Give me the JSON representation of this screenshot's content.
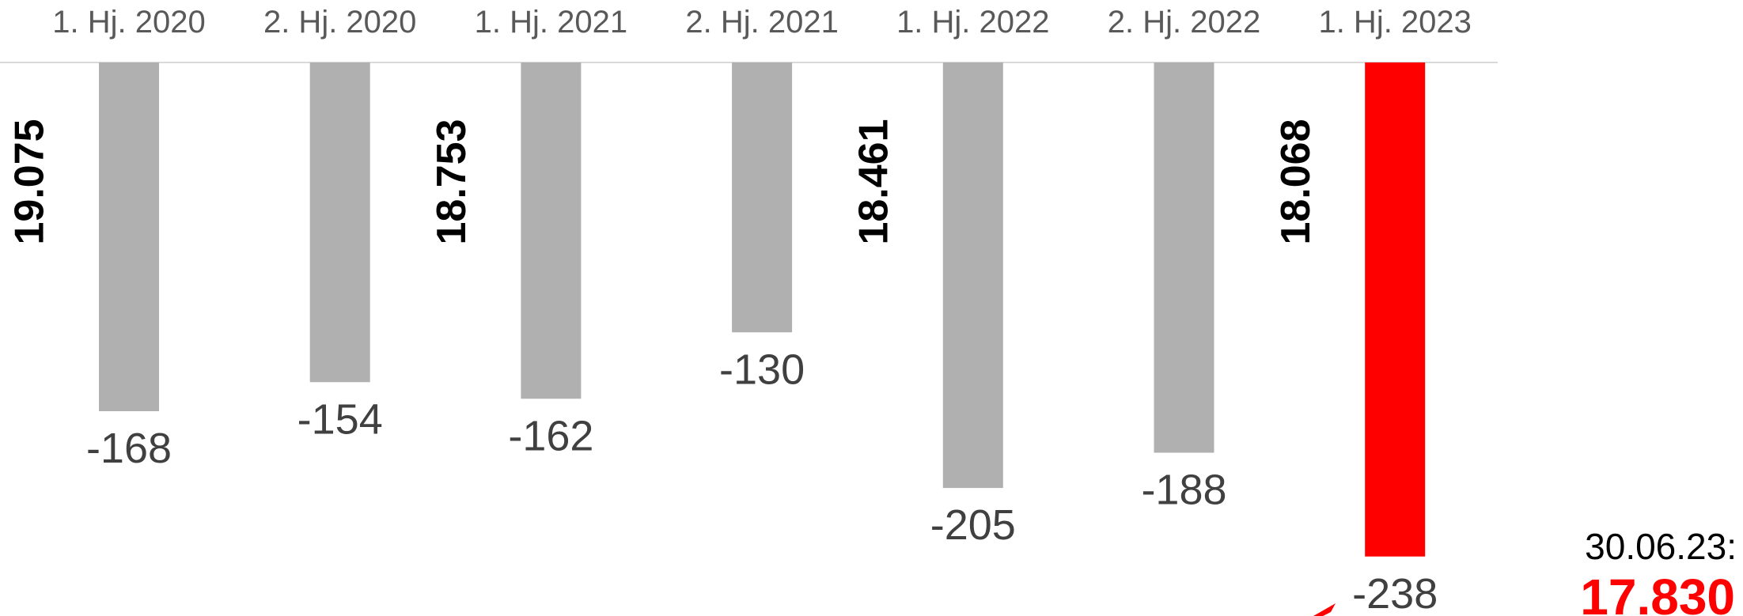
{
  "chart_data": {
    "type": "bar",
    "categories": [
      "1. Hj. 2020",
      "2. Hj. 2020",
      "1. Hj. 2021",
      "2. Hj. 2021",
      "1. Hj. 2022",
      "2. Hj. 2022",
      "1. Hj. 2023"
    ],
    "values": [
      -168,
      -154,
      -162,
      -130,
      -205,
      -188,
      -238
    ],
    "value_labels": [
      "-168",
      "-154",
      "-162",
      "-130",
      "-205",
      "-188",
      "-238"
    ],
    "ylim": [
      -260,
      0
    ],
    "grid": false,
    "bar_colors": [
      "#b0b0b0",
      "#b0b0b0",
      "#b0b0b0",
      "#b0b0b0",
      "#b0b0b0",
      "#b0b0b0",
      "#ff0000"
    ],
    "year_totals": [
      {
        "label": "19.075",
        "before_category": 0
      },
      {
        "label": "18.753",
        "before_category": 2
      },
      {
        "label": "18.461",
        "before_category": 4
      },
      {
        "label": "18.068",
        "before_category": 6
      }
    ],
    "annotation": {
      "date": "30.06.23:",
      "value": "17.830",
      "color": "#ff0000"
    }
  }
}
